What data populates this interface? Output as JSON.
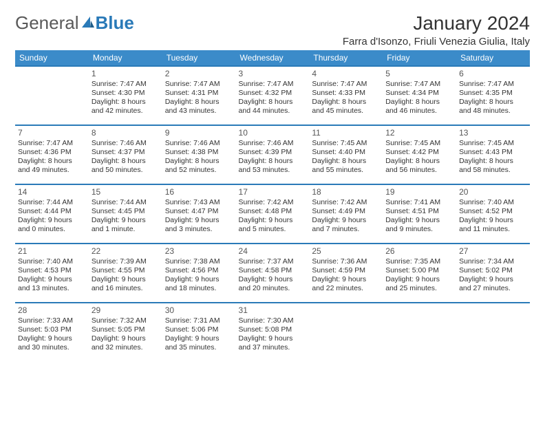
{
  "logo": {
    "text1": "General",
    "text2": "Blue"
  },
  "title": "January 2024",
  "location": "Farra d'Isonzo, Friuli Venezia Giulia, Italy",
  "colors": {
    "header_bg": "#3b8bc9",
    "header_text": "#ffffff",
    "row_border": "#2a7ab8",
    "body_text": "#333333",
    "logo_gray": "#595959",
    "logo_blue": "#2a7ab8",
    "page_bg": "#ffffff"
  },
  "typography": {
    "title_fontsize": 28,
    "location_fontsize": 15,
    "dayhead_fontsize": 12,
    "cell_fontsize": 10.5
  },
  "day_headers": [
    "Sunday",
    "Monday",
    "Tuesday",
    "Wednesday",
    "Thursday",
    "Friday",
    "Saturday"
  ],
  "weeks": [
    [
      null,
      {
        "d": "1",
        "sr": "Sunrise: 7:47 AM",
        "ss": "Sunset: 4:30 PM",
        "dl1": "Daylight: 8 hours",
        "dl2": "and 42 minutes."
      },
      {
        "d": "2",
        "sr": "Sunrise: 7:47 AM",
        "ss": "Sunset: 4:31 PM",
        "dl1": "Daylight: 8 hours",
        "dl2": "and 43 minutes."
      },
      {
        "d": "3",
        "sr": "Sunrise: 7:47 AM",
        "ss": "Sunset: 4:32 PM",
        "dl1": "Daylight: 8 hours",
        "dl2": "and 44 minutes."
      },
      {
        "d": "4",
        "sr": "Sunrise: 7:47 AM",
        "ss": "Sunset: 4:33 PM",
        "dl1": "Daylight: 8 hours",
        "dl2": "and 45 minutes."
      },
      {
        "d": "5",
        "sr": "Sunrise: 7:47 AM",
        "ss": "Sunset: 4:34 PM",
        "dl1": "Daylight: 8 hours",
        "dl2": "and 46 minutes."
      },
      {
        "d": "6",
        "sr": "Sunrise: 7:47 AM",
        "ss": "Sunset: 4:35 PM",
        "dl1": "Daylight: 8 hours",
        "dl2": "and 48 minutes."
      }
    ],
    [
      {
        "d": "7",
        "sr": "Sunrise: 7:47 AM",
        "ss": "Sunset: 4:36 PM",
        "dl1": "Daylight: 8 hours",
        "dl2": "and 49 minutes."
      },
      {
        "d": "8",
        "sr": "Sunrise: 7:46 AM",
        "ss": "Sunset: 4:37 PM",
        "dl1": "Daylight: 8 hours",
        "dl2": "and 50 minutes."
      },
      {
        "d": "9",
        "sr": "Sunrise: 7:46 AM",
        "ss": "Sunset: 4:38 PM",
        "dl1": "Daylight: 8 hours",
        "dl2": "and 52 minutes."
      },
      {
        "d": "10",
        "sr": "Sunrise: 7:46 AM",
        "ss": "Sunset: 4:39 PM",
        "dl1": "Daylight: 8 hours",
        "dl2": "and 53 minutes."
      },
      {
        "d": "11",
        "sr": "Sunrise: 7:45 AM",
        "ss": "Sunset: 4:40 PM",
        "dl1": "Daylight: 8 hours",
        "dl2": "and 55 minutes."
      },
      {
        "d": "12",
        "sr": "Sunrise: 7:45 AM",
        "ss": "Sunset: 4:42 PM",
        "dl1": "Daylight: 8 hours",
        "dl2": "and 56 minutes."
      },
      {
        "d": "13",
        "sr": "Sunrise: 7:45 AM",
        "ss": "Sunset: 4:43 PM",
        "dl1": "Daylight: 8 hours",
        "dl2": "and 58 minutes."
      }
    ],
    [
      {
        "d": "14",
        "sr": "Sunrise: 7:44 AM",
        "ss": "Sunset: 4:44 PM",
        "dl1": "Daylight: 9 hours",
        "dl2": "and 0 minutes."
      },
      {
        "d": "15",
        "sr": "Sunrise: 7:44 AM",
        "ss": "Sunset: 4:45 PM",
        "dl1": "Daylight: 9 hours",
        "dl2": "and 1 minute."
      },
      {
        "d": "16",
        "sr": "Sunrise: 7:43 AM",
        "ss": "Sunset: 4:47 PM",
        "dl1": "Daylight: 9 hours",
        "dl2": "and 3 minutes."
      },
      {
        "d": "17",
        "sr": "Sunrise: 7:42 AM",
        "ss": "Sunset: 4:48 PM",
        "dl1": "Daylight: 9 hours",
        "dl2": "and 5 minutes."
      },
      {
        "d": "18",
        "sr": "Sunrise: 7:42 AM",
        "ss": "Sunset: 4:49 PM",
        "dl1": "Daylight: 9 hours",
        "dl2": "and 7 minutes."
      },
      {
        "d": "19",
        "sr": "Sunrise: 7:41 AM",
        "ss": "Sunset: 4:51 PM",
        "dl1": "Daylight: 9 hours",
        "dl2": "and 9 minutes."
      },
      {
        "d": "20",
        "sr": "Sunrise: 7:40 AM",
        "ss": "Sunset: 4:52 PM",
        "dl1": "Daylight: 9 hours",
        "dl2": "and 11 minutes."
      }
    ],
    [
      {
        "d": "21",
        "sr": "Sunrise: 7:40 AM",
        "ss": "Sunset: 4:53 PM",
        "dl1": "Daylight: 9 hours",
        "dl2": "and 13 minutes."
      },
      {
        "d": "22",
        "sr": "Sunrise: 7:39 AM",
        "ss": "Sunset: 4:55 PM",
        "dl1": "Daylight: 9 hours",
        "dl2": "and 16 minutes."
      },
      {
        "d": "23",
        "sr": "Sunrise: 7:38 AM",
        "ss": "Sunset: 4:56 PM",
        "dl1": "Daylight: 9 hours",
        "dl2": "and 18 minutes."
      },
      {
        "d": "24",
        "sr": "Sunrise: 7:37 AM",
        "ss": "Sunset: 4:58 PM",
        "dl1": "Daylight: 9 hours",
        "dl2": "and 20 minutes."
      },
      {
        "d": "25",
        "sr": "Sunrise: 7:36 AM",
        "ss": "Sunset: 4:59 PM",
        "dl1": "Daylight: 9 hours",
        "dl2": "and 22 minutes."
      },
      {
        "d": "26",
        "sr": "Sunrise: 7:35 AM",
        "ss": "Sunset: 5:00 PM",
        "dl1": "Daylight: 9 hours",
        "dl2": "and 25 minutes."
      },
      {
        "d": "27",
        "sr": "Sunrise: 7:34 AM",
        "ss": "Sunset: 5:02 PM",
        "dl1": "Daylight: 9 hours",
        "dl2": "and 27 minutes."
      }
    ],
    [
      {
        "d": "28",
        "sr": "Sunrise: 7:33 AM",
        "ss": "Sunset: 5:03 PM",
        "dl1": "Daylight: 9 hours",
        "dl2": "and 30 minutes."
      },
      {
        "d": "29",
        "sr": "Sunrise: 7:32 AM",
        "ss": "Sunset: 5:05 PM",
        "dl1": "Daylight: 9 hours",
        "dl2": "and 32 minutes."
      },
      {
        "d": "30",
        "sr": "Sunrise: 7:31 AM",
        "ss": "Sunset: 5:06 PM",
        "dl1": "Daylight: 9 hours",
        "dl2": "and 35 minutes."
      },
      {
        "d": "31",
        "sr": "Sunrise: 7:30 AM",
        "ss": "Sunset: 5:08 PM",
        "dl1": "Daylight: 9 hours",
        "dl2": "and 37 minutes."
      },
      null,
      null,
      null
    ]
  ]
}
